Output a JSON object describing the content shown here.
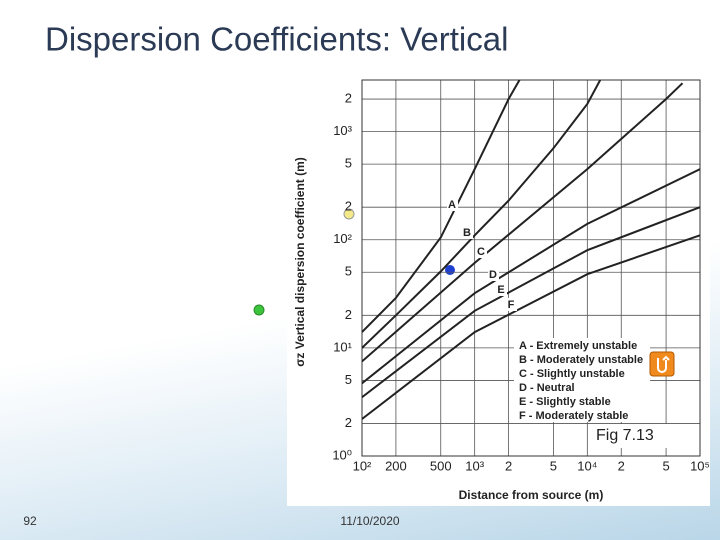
{
  "slide": {
    "title": "Dispersion Coefficients: Vertical",
    "page_number": "92",
    "date": "11/10/2020",
    "caption": "Fig 7.13"
  },
  "chart_data": {
    "type": "line",
    "x_label": "Distance from source (m)",
    "y_label": "σz  Vertical dispersion coefficient (m)",
    "log_x": true,
    "log_y": true,
    "grid": true,
    "legend": "lower right",
    "xlim": [
      100,
      100000
    ],
    "ylim": [
      1,
      3000
    ],
    "xticks": [
      {
        "value": 100,
        "label": "10²"
      },
      200,
      500,
      {
        "value": 1000,
        "label": "10³"
      },
      {
        "value": 2000,
        "label": "2"
      },
      {
        "value": 5000,
        "label": "5"
      },
      {
        "value": 10000,
        "label": "10⁴"
      },
      {
        "value": 20000,
        "label": "2"
      },
      {
        "value": 50000,
        "label": "5"
      },
      {
        "value": 100000,
        "label": "10⁵"
      }
    ],
    "yticks": [
      {
        "value": 1,
        "label": "10⁰"
      },
      2,
      5,
      {
        "value": 10,
        "label": "10¹"
      },
      {
        "value": 20,
        "label": "2"
      },
      {
        "value": 50,
        "label": "5"
      },
      {
        "value": 100,
        "label": "10²"
      },
      {
        "value": 200,
        "label": "2"
      },
      {
        "value": 500,
        "label": "5"
      },
      {
        "value": 1000,
        "label": "10³"
      },
      {
        "value": 2000,
        "label": "2"
      }
    ],
    "curve_labels": [
      "A",
      "B",
      "C",
      "D",
      "E",
      "F"
    ],
    "series": [
      {
        "name": "A - Extremely  unstable",
        "color": "#222222",
        "x": [
          100,
          200,
          500,
          1000,
          2000,
          2500
        ],
        "values": [
          14,
          29,
          105,
          450,
          2000,
          3000
        ]
      },
      {
        "name": "B - Moderately unstable",
        "color": "#222222",
        "x": [
          100,
          200,
          500,
          1000,
          2000,
          5000,
          10000,
          13000
        ],
        "values": [
          10,
          20,
          51,
          110,
          230,
          700,
          1800,
          3000
        ]
      },
      {
        "name": "C - Slightly unstable",
        "color": "#222222",
        "x": [
          100,
          1000,
          10000,
          50000,
          70000
        ],
        "values": [
          7.5,
          61,
          450,
          2000,
          2800
        ]
      },
      {
        "name": "D - Neutral",
        "color": "#222222",
        "x": [
          100,
          1000,
          10000,
          100000
        ],
        "values": [
          4.7,
          32,
          140,
          450
        ]
      },
      {
        "name": "E - Slightly stable",
        "color": "#222222",
        "x": [
          100,
          1000,
          10000,
          100000
        ],
        "values": [
          3.5,
          22,
          80,
          200
        ]
      },
      {
        "name": "F - Moderately stable",
        "color": "#222222",
        "x": [
          100,
          1000,
          10000,
          100000
        ],
        "values": [
          2.2,
          14,
          48,
          110
        ]
      }
    ]
  }
}
